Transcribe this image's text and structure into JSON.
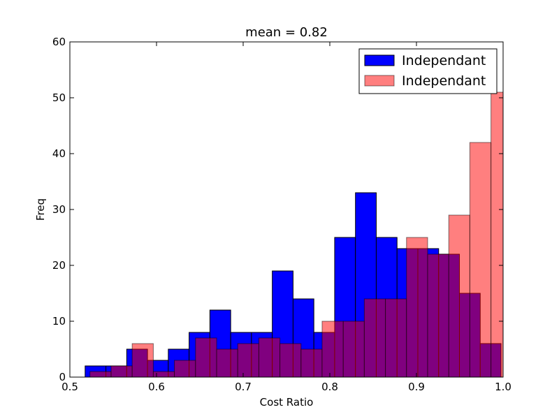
{
  "chart_data": {
    "type": "histogram",
    "title": "mean = 0.82",
    "xlabel": "Cost Ratio",
    "ylabel": "Freq",
    "xlim": [
      0.5,
      1.0
    ],
    "ylim": [
      0,
      60
    ],
    "xticks": [
      0.5,
      0.6,
      0.7,
      0.8,
      0.9,
      1.0
    ],
    "xtick_labels": [
      "0.5",
      "0.6",
      "0.7",
      "0.8",
      "0.9",
      "1.0"
    ],
    "yticks": [
      0,
      10,
      20,
      30,
      40,
      50,
      60
    ],
    "ytick_labels": [
      "0",
      "10",
      "20",
      "30",
      "40",
      "50",
      "60"
    ],
    "grid": false,
    "legend_position": "top-right",
    "series": [
      {
        "name": "Independant",
        "color": "#0000ff",
        "alpha": 1.0,
        "bins": [
          {
            "x0": 0.5176,
            "x1": 0.5416,
            "count": 2
          },
          {
            "x0": 0.5416,
            "x1": 0.5656,
            "count": 2
          },
          {
            "x0": 0.5656,
            "x1": 0.5896,
            "count": 5
          },
          {
            "x0": 0.5896,
            "x1": 0.6136,
            "count": 3
          },
          {
            "x0": 0.6136,
            "x1": 0.6376,
            "count": 5
          },
          {
            "x0": 0.6376,
            "x1": 0.6616,
            "count": 8
          },
          {
            "x0": 0.6616,
            "x1": 0.6856,
            "count": 12
          },
          {
            "x0": 0.6856,
            "x1": 0.7096,
            "count": 8
          },
          {
            "x0": 0.7096,
            "x1": 0.7336,
            "count": 8
          },
          {
            "x0": 0.7336,
            "x1": 0.7576,
            "count": 19
          },
          {
            "x0": 0.7576,
            "x1": 0.7816,
            "count": 14
          },
          {
            "x0": 0.7816,
            "x1": 0.8056,
            "count": 8
          },
          {
            "x0": 0.8056,
            "x1": 0.8296,
            "count": 25
          },
          {
            "x0": 0.8296,
            "x1": 0.8536,
            "count": 33
          },
          {
            "x0": 0.8536,
            "x1": 0.8776,
            "count": 25
          },
          {
            "x0": 0.8776,
            "x1": 0.9016,
            "count": 23
          },
          {
            "x0": 0.9016,
            "x1": 0.9256,
            "count": 23
          },
          {
            "x0": 0.9256,
            "x1": 0.9496,
            "count": 22
          },
          {
            "x0": 0.9496,
            "x1": 0.9736,
            "count": 15
          },
          {
            "x0": 0.9736,
            "x1": 0.9976,
            "count": 6
          }
        ]
      },
      {
        "name": "Independant",
        "color": "#ff0000",
        "alpha": 0.5,
        "bins": [
          {
            "x0": 0.5232,
            "x1": 0.5476,
            "count": 1
          },
          {
            "x0": 0.5476,
            "x1": 0.5719,
            "count": 2
          },
          {
            "x0": 0.5719,
            "x1": 0.5963,
            "count": 6
          },
          {
            "x0": 0.5963,
            "x1": 0.6206,
            "count": 1
          },
          {
            "x0": 0.6206,
            "x1": 0.645,
            "count": 3
          },
          {
            "x0": 0.645,
            "x1": 0.6694,
            "count": 7
          },
          {
            "x0": 0.6694,
            "x1": 0.6937,
            "count": 5
          },
          {
            "x0": 0.6937,
            "x1": 0.7181,
            "count": 6
          },
          {
            "x0": 0.7181,
            "x1": 0.7424,
            "count": 7
          },
          {
            "x0": 0.7424,
            "x1": 0.7668,
            "count": 6
          },
          {
            "x0": 0.7668,
            "x1": 0.7911,
            "count": 5
          },
          {
            "x0": 0.7911,
            "x1": 0.8155,
            "count": 10
          },
          {
            "x0": 0.8155,
            "x1": 0.8398,
            "count": 10
          },
          {
            "x0": 0.8398,
            "x1": 0.8642,
            "count": 14
          },
          {
            "x0": 0.8642,
            "x1": 0.8885,
            "count": 14
          },
          {
            "x0": 0.8885,
            "x1": 0.9129,
            "count": 25
          },
          {
            "x0": 0.9129,
            "x1": 0.9373,
            "count": 22
          },
          {
            "x0": 0.9373,
            "x1": 0.9616,
            "count": 29
          },
          {
            "x0": 0.9616,
            "x1": 0.986,
            "count": 42
          },
          {
            "x0": 0.986,
            "x1": 1.0103,
            "count": 51
          }
        ]
      }
    ]
  }
}
